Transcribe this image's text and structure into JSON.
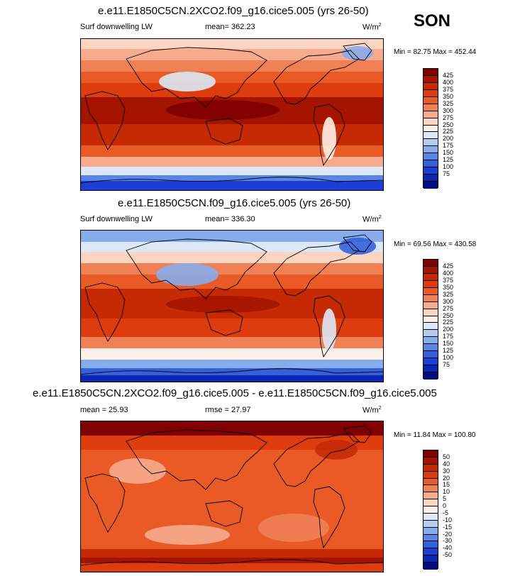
{
  "season": "SON",
  "panels": [
    {
      "title": "e.e11.E1850C5CN.2XCO2.f09_g16.cice5.005 (yrs 26-50)",
      "left_label": "Surf downwelling LW",
      "center_label": "mean= 362.23",
      "units": "W/m",
      "units_sup": "2",
      "minmax": "Min = 82.75 Max = 452.44",
      "colorbar": {
        "labels": [
          "425",
          "400",
          "375",
          "350",
          "325",
          "300",
          "275",
          "250",
          "225",
          "200",
          "175",
          "150",
          "125",
          "100",
          "75"
        ],
        "colors": [
          "#800000",
          "#a41400",
          "#c52a05",
          "#dd3c0e",
          "#e95a27",
          "#f08157",
          "#f6ab8d",
          "#fad6c2",
          "#fdf0e6",
          "#dce8f7",
          "#b3cdf1",
          "#87acec",
          "#5a85e4",
          "#3560dc",
          "#1b3fd4",
          "#0d25b5",
          "#000c80"
        ]
      },
      "field": "warm"
    },
    {
      "title": "e.e11.E1850C5CN.f09_g16.cice5.005 (yrs 26-50)",
      "left_label": "Surf downwelling LW",
      "center_label": "mean= 336.30",
      "units": "W/m",
      "units_sup": "2",
      "minmax": "Min = 69.56 Max = 430.58",
      "colorbar": {
        "labels": [
          "425",
          "400",
          "375",
          "350",
          "325",
          "300",
          "275",
          "250",
          "225",
          "200",
          "175",
          "150",
          "125",
          "100",
          "75"
        ],
        "colors": [
          "#800000",
          "#a41400",
          "#c52a05",
          "#dd3c0e",
          "#e95a27",
          "#f08157",
          "#f6ab8d",
          "#fad6c2",
          "#fdf0e6",
          "#dce8f7",
          "#b3cdf1",
          "#87acec",
          "#5a85e4",
          "#3560dc",
          "#1b3fd4",
          "#0d25b5",
          "#000c80"
        ]
      },
      "field": "control"
    },
    {
      "title": "e.e11.E1850C5CN.2XCO2.f09_g16.cice5.005 - e.e11.E1850C5CN.f09_g16.cice5.005",
      "left_label": "mean =  25.93",
      "center_label": "rmse =  27.97",
      "units": "W/m",
      "units_sup": "2",
      "minmax": "Min =  11.84 Max = 100.80",
      "colorbar": {
        "labels": [
          "50",
          "40",
          "30",
          "20",
          "15",
          "10",
          "5",
          "0",
          "-5",
          "-10",
          "-15",
          "-20",
          "-30",
          "-40",
          "-50"
        ],
        "colors": [
          "#800000",
          "#a41400",
          "#c52a05",
          "#dd3c0e",
          "#e95a27",
          "#f08157",
          "#f6ab8d",
          "#fad6c2",
          "#fdf0e6",
          "#dce8f7",
          "#b3cdf1",
          "#87acec",
          "#5a85e4",
          "#3560dc",
          "#1b3fd4",
          "#0d25b5",
          "#000c80"
        ]
      },
      "field": "diff"
    }
  ]
}
